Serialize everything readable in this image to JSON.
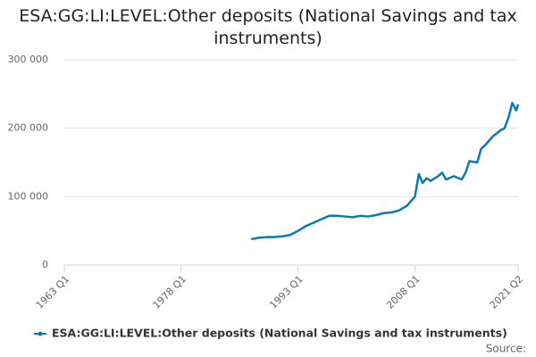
{
  "chart_data": {
    "type": "line",
    "title": "ESA:GG:LI:LEVEL:Other deposits (National Savings and tax instruments)",
    "source": "Source:",
    "x": [
      "1987 Q1",
      "1988 Q1",
      "1989 Q1",
      "1990 Q1",
      "1991 Q1",
      "1992 Q1",
      "1993 Q1",
      "1994 Q1",
      "1995 Q1",
      "1996 Q1",
      "1997 Q1",
      "1998 Q1",
      "1999 Q1",
      "2000 Q1",
      "2001 Q1",
      "2002 Q1",
      "2003 Q1",
      "2004 Q1",
      "2005 Q1",
      "2006 Q1",
      "2007 Q1",
      "2008 Q1",
      "2008 Q3",
      "2009 Q1",
      "2009 Q3",
      "2010 Q1",
      "2011 Q1",
      "2011 Q3",
      "2012 Q1",
      "2013 Q1",
      "2014 Q1",
      "2014 Q3",
      "2015 Q1",
      "2016 Q1",
      "2016 Q3",
      "2017 Q1",
      "2018 Q1",
      "2019 Q1",
      "2019 Q3",
      "2020 Q1",
      "2020 Q3",
      "2021 Q1",
      "2021 Q2"
    ],
    "series": [
      {
        "name": "ESA:GG:LI:LEVEL:Other deposits (National Savings and tax instruments)",
        "color": "#0a7ab5",
        "values": [
          38000,
          40000,
          41000,
          41000,
          42000,
          44000,
          50000,
          57000,
          62000,
          67000,
          72000,
          72000,
          71000,
          70000,
          72000,
          71000,
          73000,
          76000,
          77000,
          80000,
          87000,
          100000,
          133000,
          120000,
          127000,
          123000,
          130000,
          135000,
          125000,
          130000,
          125000,
          135000,
          152000,
          150000,
          170000,
          175000,
          188000,
          197000,
          200000,
          215000,
          237000,
          226000,
          235000
        ]
      }
    ],
    "xlim": [
      "1963 Q1",
      "2021 Q2"
    ],
    "xticks": [
      "1963 Q1",
      "1978 Q1",
      "1993 Q1",
      "2008 Q1",
      "2021 Q2"
    ],
    "ylim": [
      0,
      300000
    ],
    "yticks": [
      0,
      {
        "value": 100000,
        "label": "100 000"
      },
      {
        "value": 200000,
        "label": "200 000"
      },
      {
        "value": 300000,
        "label": "300 000"
      }
    ],
    "grid": true,
    "legend": "bottom"
  }
}
